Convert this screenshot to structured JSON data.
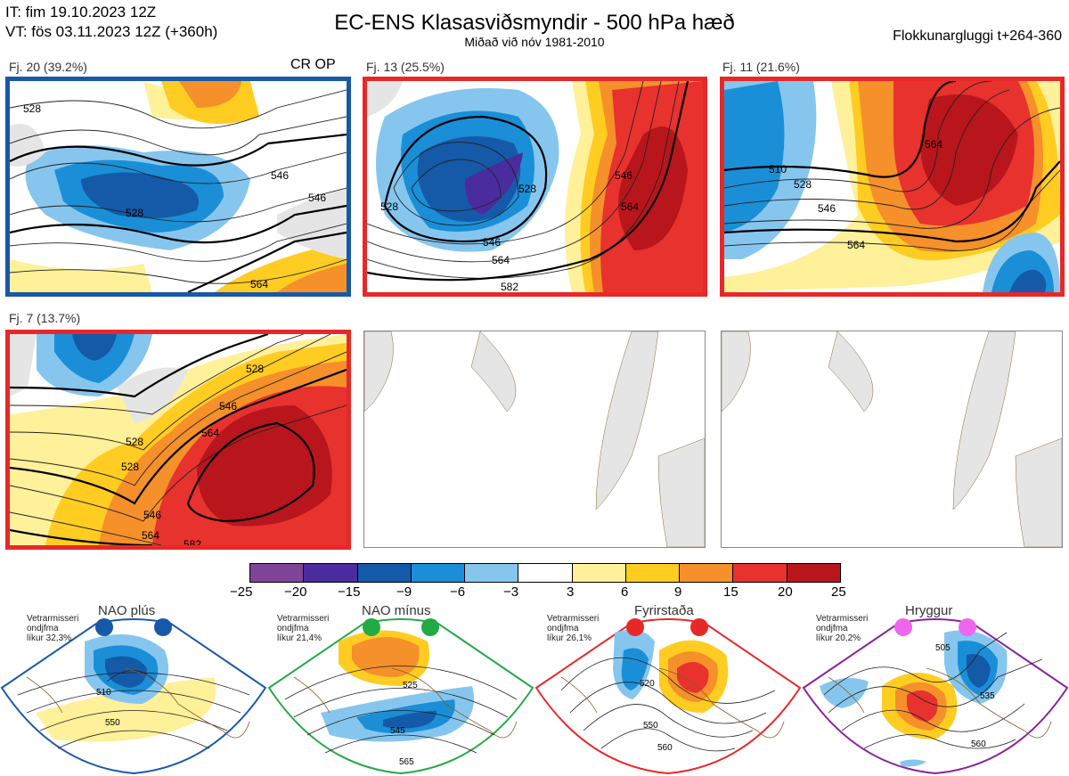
{
  "header": {
    "it": "IT: fim 19.10.2023 12Z",
    "vt": "VT: fös 03.11.2023 12Z  (+360h)",
    "title": "EC-ENS Klasasviðsmyndir - 500 hPa hæð",
    "subtitle": "Miðað við nóv 1981-2010",
    "window": "Flokkunargluggi t+264-360"
  },
  "panels": [
    {
      "label": "Fj. 20 (39.2%)",
      "tag": "CR OP",
      "border": "#1858a8",
      "contours": [
        "528",
        "546",
        "528",
        "546",
        "564"
      ]
    },
    {
      "label": "Fj. 13 (25.5%)",
      "tag": "",
      "border": "#e82828",
      "contours": [
        "528",
        "528",
        "546",
        "546",
        "564",
        "564",
        "582"
      ]
    },
    {
      "label": "Fj. 11 (21.6%)",
      "tag": "",
      "border": "#e82828",
      "contours": [
        "510",
        "528",
        "546",
        "564",
        "564"
      ]
    },
    {
      "label": "Fj. 7 (13.7%)",
      "tag": "",
      "border": "#e82828",
      "contours": [
        "528",
        "546",
        "564",
        "528",
        "528",
        "546",
        "564",
        "582"
      ]
    }
  ],
  "colorbar": {
    "ticks": [
      "−25",
      "−20",
      "−15",
      "−9",
      "−6",
      "−3",
      "3",
      "6",
      "9",
      "15",
      "20",
      "25"
    ],
    "colors": [
      "#7f4499",
      "#4a2c9e",
      "#155aa8",
      "#1a8fd8",
      "#86c6ee",
      "#ffffff",
      "#fff09a",
      "#ffcc22",
      "#f5902a",
      "#e8322e",
      "#b8161c"
    ]
  },
  "regimes": [
    {
      "name": "NAO plús",
      "meta": [
        "Vetrarmisseri",
        "ondjfma",
        "líkur 32,3%"
      ],
      "dot_color": "#1858a8",
      "border": "#1858a8",
      "contours": [
        "510",
        "550"
      ]
    },
    {
      "name": "NAO mínus",
      "meta": [
        "Vetrarmisseri",
        "ondjfma",
        "líkur 21,4%"
      ],
      "dot_color": "#22aa44",
      "border": "#22aa44",
      "contours": [
        "525",
        "545",
        "565"
      ]
    },
    {
      "name": "Fyrirstaða",
      "meta": [
        "Vetrarmisseri",
        "ondjfma",
        "líkur 26,1%"
      ],
      "dot_color": "#e82828",
      "border": "#e82828",
      "contours": [
        "520",
        "550",
        "560"
      ]
    },
    {
      "name": "Hryggur",
      "meta": [
        "Vetrarmisseri",
        "ondjfma",
        "líkur 20,2%"
      ],
      "dot_color": "#ee66ee",
      "border": "#882299",
      "contours": [
        "505",
        "535",
        "560"
      ]
    }
  ]
}
